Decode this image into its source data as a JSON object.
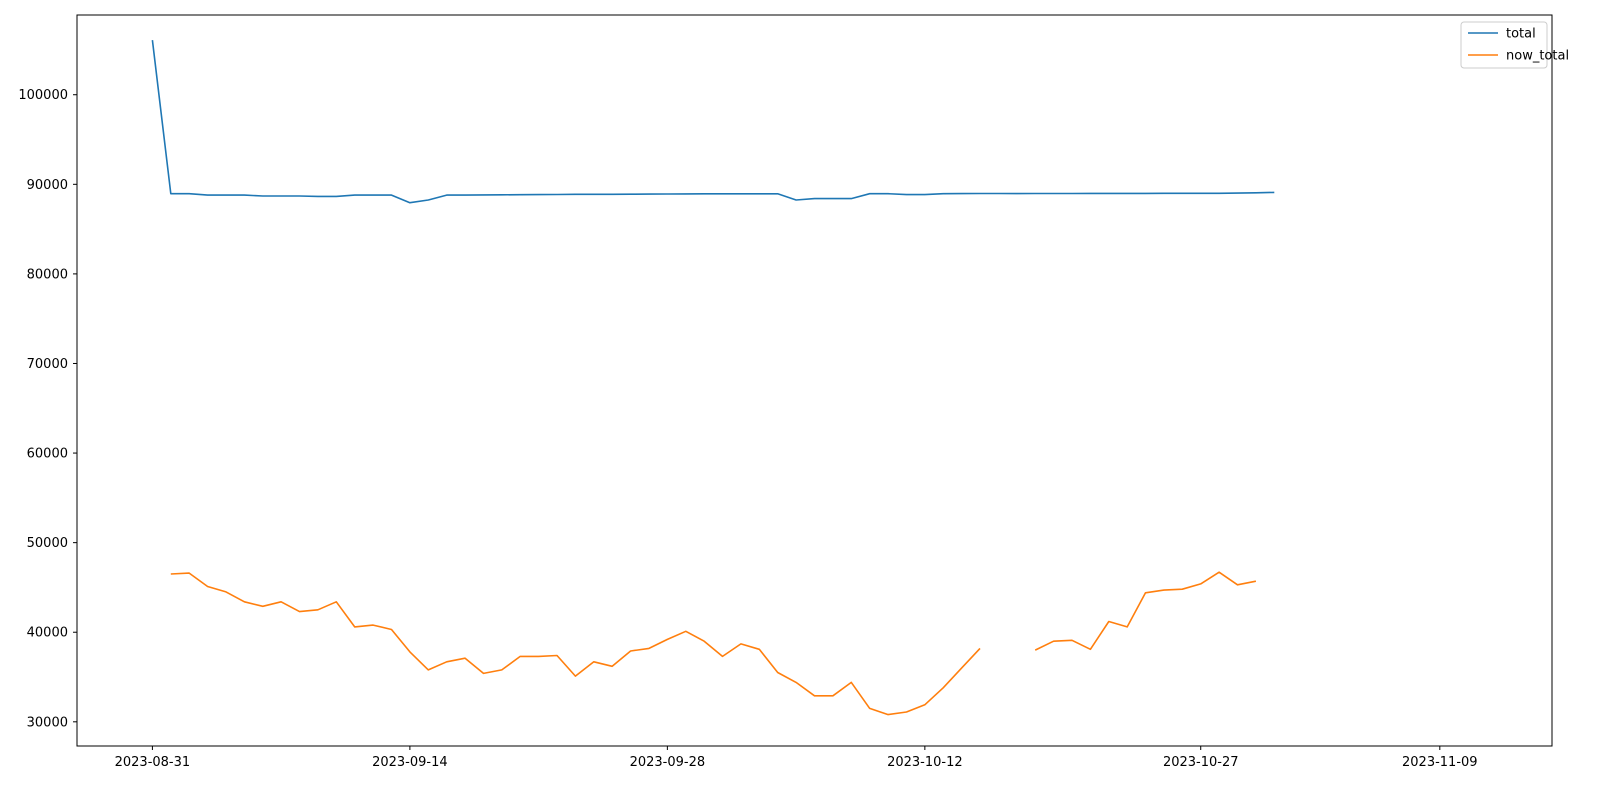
{
  "chart_data": {
    "type": "line",
    "x_start": "2023-08-31",
    "x_labels": [
      "2023-08-31",
      "2023-09-14",
      "2023-09-28",
      "2023-10-12",
      "2023-10-27",
      "2023-11-09",
      ""
    ],
    "y_ticks": [
      30000,
      40000,
      50000,
      60000,
      70000,
      80000,
      90000,
      100000
    ],
    "xlim": [
      -4.1,
      76.1
    ],
    "ylim": [
      27300,
      108900
    ],
    "legend_position": "top-right",
    "grid": false,
    "series": [
      {
        "name": "total",
        "color": "#1f77b4",
        "values": [
          106100,
          88950,
          88950,
          88800,
          88800,
          88800,
          88700,
          88700,
          88700,
          88650,
          88650,
          88800,
          88800,
          88800,
          87950,
          88250,
          88800,
          88800,
          88820,
          88830,
          88840,
          88850,
          88860,
          88880,
          88880,
          88890,
          88900,
          88910,
          88920,
          88930,
          88940,
          88940,
          88940,
          88940,
          88940,
          88250,
          88400,
          88400,
          88400,
          88950,
          88950,
          88850,
          88850,
          88950,
          88960,
          88970,
          88970,
          88960,
          88970,
          88980,
          88980,
          88990,
          88990,
          88990,
          88990,
          89000,
          89000,
          89000,
          89000,
          89020,
          89050,
          89100
        ]
      },
      {
        "name": "now_total",
        "color": "#ff7f0e",
        "values": [
          null,
          46500,
          46600,
          45100,
          44500,
          43400,
          42900,
          43400,
          42300,
          42500,
          43400,
          40600,
          40800,
          40300,
          37800,
          35800,
          36700,
          37100,
          35400,
          35800,
          37300,
          37300,
          37400,
          35100,
          36700,
          36200,
          37900,
          38200,
          39200,
          40100,
          39000,
          37300,
          38700,
          38100,
          35500,
          34400,
          32900,
          32900,
          34400,
          31500,
          30800,
          31100,
          31900,
          33800,
          36000,
          38200,
          null,
          null,
          38000,
          39000,
          39100,
          38100,
          41200,
          40600,
          44400,
          44700,
          44800,
          45400,
          46700,
          45300,
          45700,
          null
        ]
      }
    ]
  }
}
